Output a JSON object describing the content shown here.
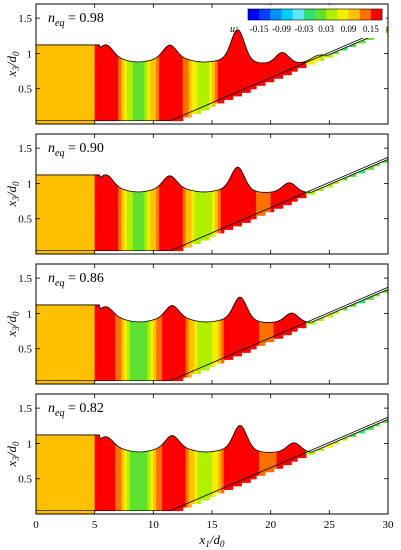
{
  "chart_data": {
    "type": "heatmap",
    "xlabel": "x",
    "xlabel_sub": "1",
    "xlabel_den": "/d",
    "xlabel_den_sub": "0",
    "ylabel": "x",
    "ylabel_sub": "3",
    "ylabel_den": "/d",
    "ylabel_den_sub": "0",
    "xlim": [
      0,
      30
    ],
    "ylim": [
      0,
      1.7
    ],
    "x_ticks": [
      "0",
      "5",
      "10",
      "15",
      "20",
      "25",
      "30"
    ],
    "y_ticks": [
      "0",
      "0.5",
      "1",
      "1.5"
    ],
    "colorbar": {
      "label": "u:",
      "tick_labels": [
        "-0.15",
        "-0.09",
        "-0.03",
        "0.03",
        "0.09",
        "0.15"
      ],
      "levels": [
        -0.18,
        -0.15,
        -0.12,
        -0.09,
        -0.06,
        -0.03,
        0,
        0.03,
        0.06,
        0.09,
        0.12,
        0.15,
        0.18
      ],
      "colors": [
        "#0000ff",
        "#0040ff",
        "#0090ff",
        "#00d0ff",
        "#60e8ff",
        "#30e070",
        "#60e030",
        "#b0f000",
        "#f0f000",
        "#ffc000",
        "#ff7000",
        "#ff0000"
      ]
    },
    "slope": {
      "toe_x": 11.5,
      "slope": 0.0714
    },
    "still_water_depth": 1.0,
    "panels": [
      {
        "label": "n",
        "label_sub": "eq",
        "label_value": " = 0.98",
        "front_x": 5.4,
        "front_h": 1.12,
        "crests": [
          [
            6.0,
            0.15
          ],
          [
            11.4,
            0.17
          ],
          [
            17.2,
            0.42
          ],
          [
            21.0,
            0.15
          ],
          [
            24.0,
            0.05
          ]
        ]
      },
      {
        "label": "n",
        "label_sub": "eq",
        "label_value": " = 0.90",
        "front_x": 5.4,
        "front_h": 1.12,
        "crests": [
          [
            6.0,
            0.15
          ],
          [
            11.4,
            0.16
          ],
          [
            17.2,
            0.3
          ],
          [
            21.6,
            0.12
          ],
          [
            25.2,
            0.04
          ]
        ]
      },
      {
        "label": "n",
        "label_sub": "eq",
        "label_value": " = 0.86",
        "front_x": 5.4,
        "front_h": 1.12,
        "crests": [
          [
            6.0,
            0.12
          ],
          [
            11.6,
            0.16
          ],
          [
            17.4,
            0.3
          ],
          [
            21.8,
            0.12
          ],
          [
            25.2,
            0.04
          ]
        ]
      },
      {
        "label": "n",
        "label_sub": "eq",
        "label_value": " = 0.82",
        "front_x": 5.4,
        "front_h": 1.12,
        "crests": [
          [
            6.0,
            0.12
          ],
          [
            11.6,
            0.16
          ],
          [
            17.4,
            0.32
          ],
          [
            22.0,
            0.12
          ],
          [
            25.4,
            0.05
          ]
        ]
      }
    ]
  }
}
